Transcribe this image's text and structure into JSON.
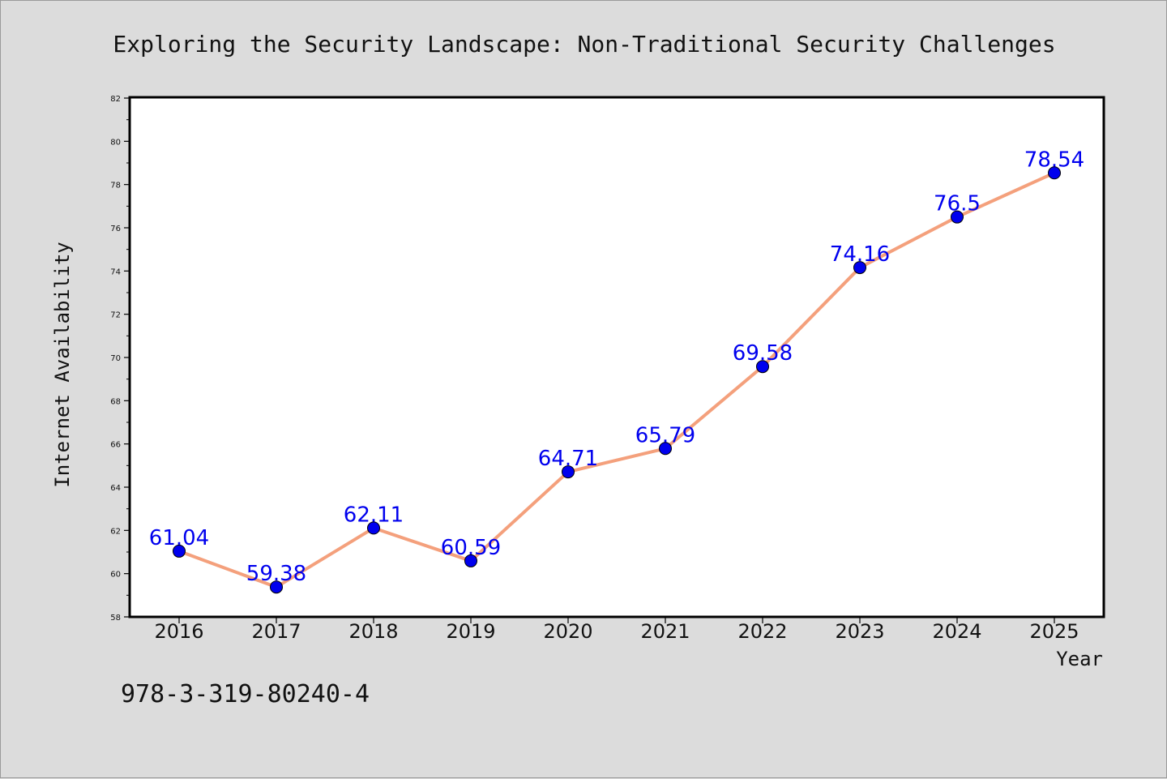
{
  "chart_data": {
    "type": "line",
    "title": "Exploring the Security Landscape: Non-Traditional Security Challenges",
    "xlabel": "Year",
    "ylabel": "Internet Availability",
    "categories": [
      "2016",
      "2017",
      "2018",
      "2019",
      "2020",
      "2021",
      "2022",
      "2023",
      "2024",
      "2025"
    ],
    "series": [
      {
        "values": [
          61.04,
          59.38,
          62.11,
          60.59,
          64.71,
          65.79,
          69.58,
          74.16,
          76.5,
          78.54
        ],
        "data_labels": [
          "61.04",
          "59.38",
          "62.11",
          "60.59",
          "64.71",
          "65.79",
          "69.58",
          "74.16",
          "76.5",
          "78.54"
        ]
      }
    ],
    "ylim": [
      58,
      82
    ],
    "yticks": [
      "58",
      "60",
      "62",
      "64",
      "66",
      "68",
      "70",
      "72",
      "74",
      "76",
      "78",
      "80",
      "82"
    ],
    "grid": false,
    "legend": "none",
    "colors": {
      "line": "#f4a07c",
      "marker": "#0000ee",
      "label": "#0000ee",
      "plot_bg": "#ffffff",
      "page_bg": "#dcdcdc"
    }
  },
  "footer": {
    "isbn": "978-3-319-80240-4"
  }
}
